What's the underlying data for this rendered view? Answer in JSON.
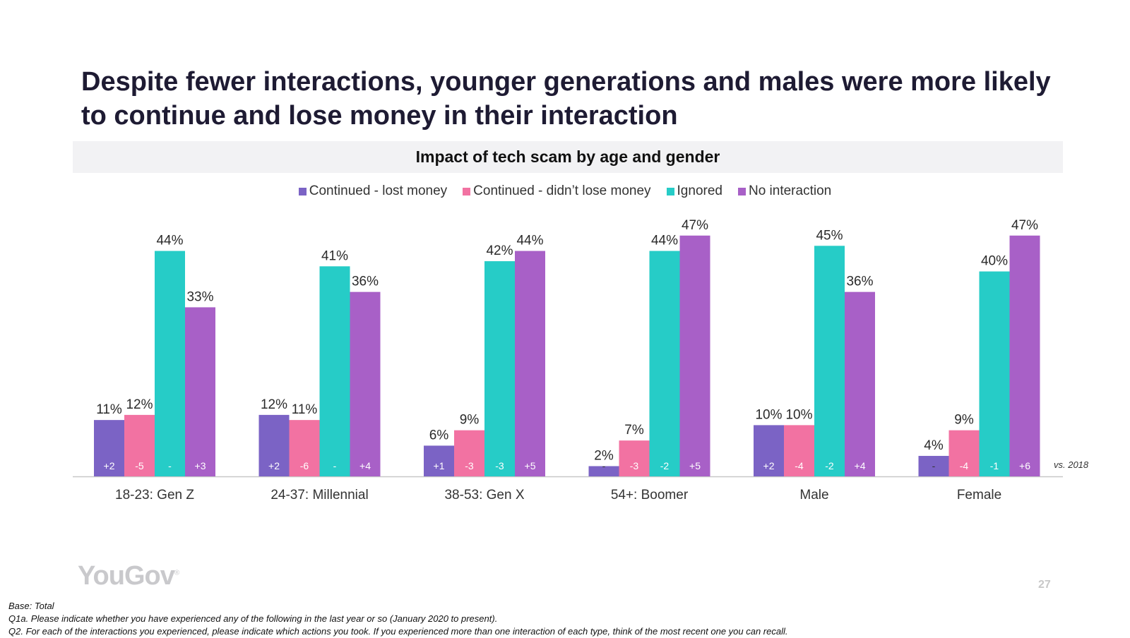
{
  "headline": "Despite fewer interactions, younger generations and males were more likely to continue and lose money in their interaction",
  "brand": {
    "logo_text": "YouGov",
    "logo_mark": "®"
  },
  "page_number": "27",
  "footnotes": [
    "Base: Total",
    "Q1a. Please indicate whether you have experienced any of the following in the last year or so (January 2020 to present).",
    "Q2. For each of the interactions you experienced, please indicate which actions you took. If you experienced more than one interaction of each type, think of the most recent one you can recall."
  ],
  "chart_data": {
    "type": "bar",
    "title": "Impact of tech scam by age and gender",
    "xlabel": "",
    "ylabel": "",
    "ylim": [
      0,
      50
    ],
    "grid": false,
    "legend_position": "top",
    "categories": [
      "18-23: Gen Z",
      "24-37: Millennial",
      "38-53: Gen X",
      "54+: Boomer",
      "Male",
      "Female"
    ],
    "series": [
      {
        "name": "Continued - lost money",
        "color": "#7b63c5",
        "values": [
          11,
          12,
          6,
          2,
          10,
          4
        ],
        "labels": [
          "11%",
          "12%",
          "6%",
          "2%",
          "10%",
          "4%"
        ],
        "changes": [
          "+2",
          "+2",
          "+1",
          "-",
          "+2",
          "-"
        ]
      },
      {
        "name": "Continued - didn’t lose money",
        "color": "#f272a2",
        "values": [
          12,
          11,
          9,
          7,
          10,
          9
        ],
        "labels": [
          "12%",
          "11%",
          "9%",
          "7%",
          "10%",
          "9%"
        ],
        "changes": [
          "-5",
          "-6",
          "-3",
          "-3",
          "-4",
          "-4"
        ]
      },
      {
        "name": "Ignored",
        "color": "#26ccc7",
        "values": [
          44,
          41,
          42,
          44,
          45,
          40
        ],
        "labels": [
          "44%",
          "41%",
          "42%",
          "44%",
          "45%",
          "40%"
        ],
        "changes": [
          "-",
          "-",
          "-3",
          "-2",
          "-2",
          "-1"
        ]
      },
      {
        "name": "No interaction",
        "color": "#a860c7",
        "values": [
          33,
          36,
          44,
          47,
          36,
          47
        ],
        "labels": [
          "33%",
          "36%",
          "44%",
          "47%",
          "36%",
          "47%"
        ],
        "changes": [
          "+3",
          "+4",
          "+5",
          "+5",
          "+4",
          "+6"
        ]
      }
    ],
    "comparison_label": "vs. 2018"
  }
}
